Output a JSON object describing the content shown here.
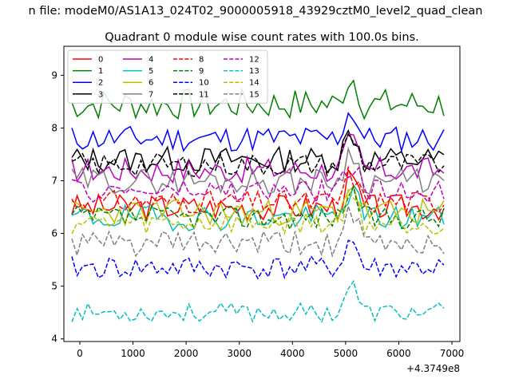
{
  "figure": {
    "suptitle": "n file: modeM0/AS1A13_024T02_9000005918_43929cztM0_level2_quad_clean"
  },
  "chart_data": {
    "type": "line",
    "title": "Quadrant 0 module wise count rates with 100.0s bins.",
    "xlabel": "",
    "ylabel": "",
    "x_offset_label": "+4.3749e8",
    "xlim": [
      -300,
      7150
    ],
    "ylim": [
      3.95,
      9.55
    ],
    "xticks": [
      0,
      1000,
      2000,
      3000,
      4000,
      5000,
      6000,
      7000
    ],
    "yticks": [
      4,
      5,
      6,
      7,
      8,
      9
    ],
    "grid": false,
    "legend": {
      "position": "top-left",
      "columns": 4
    },
    "x": {
      "start": -150,
      "step": 100,
      "count": 71
    },
    "series": [
      {
        "name": "0",
        "color": "#ff0000",
        "style": "solid",
        "base": 6.5,
        "amp": 0.25,
        "seed": 3
      },
      {
        "name": "1",
        "color": "#008000",
        "style": "solid",
        "base": 8.45,
        "amp": 0.3,
        "seed": 7
      },
      {
        "name": "2",
        "color": "#0000ff",
        "style": "solid",
        "base": 7.8,
        "amp": 0.25,
        "seed": 11
      },
      {
        "name": "3",
        "color": "#000000",
        "style": "solid",
        "base": 7.4,
        "amp": 0.25,
        "seed": 13
      },
      {
        "name": "4",
        "color": "#bf00bf",
        "style": "solid",
        "base": 7.2,
        "amp": 0.25,
        "seed": 17
      },
      {
        "name": "5",
        "color": "#00bfbf",
        "style": "solid",
        "base": 6.3,
        "amp": 0.25,
        "seed": 19
      },
      {
        "name": "6",
        "color": "#bfbf00",
        "style": "solid",
        "base": 6.4,
        "amp": 0.25,
        "seed": 23
      },
      {
        "name": "7",
        "color": "#808080",
        "style": "solid",
        "base": 7.0,
        "amp": 0.25,
        "seed": 29
      },
      {
        "name": "8",
        "color": "#ff0000",
        "style": "dashed",
        "base": 6.6,
        "amp": 0.22,
        "seed": 31
      },
      {
        "name": "9",
        "color": "#008000",
        "style": "dashed",
        "base": 6.3,
        "amp": 0.22,
        "seed": 37
      },
      {
        "name": "10",
        "color": "#0000ff",
        "style": "dashed",
        "base": 5.35,
        "amp": 0.22,
        "seed": 41
      },
      {
        "name": "11",
        "color": "#000000",
        "style": "dashed",
        "base": 7.3,
        "amp": 0.22,
        "seed": 43
      },
      {
        "name": "12",
        "color": "#bf00bf",
        "style": "dashed",
        "base": 6.8,
        "amp": 0.22,
        "seed": 47
      },
      {
        "name": "13",
        "color": "#00bfbf",
        "style": "dashed",
        "base": 4.5,
        "amp": 0.18,
        "seed": 53
      },
      {
        "name": "14",
        "color": "#bfbf00",
        "style": "dashed",
        "base": 6.2,
        "amp": 0.22,
        "seed": 59
      },
      {
        "name": "15",
        "color": "#808080",
        "style": "dashed",
        "base": 5.8,
        "amp": 0.25,
        "seed": 61
      }
    ]
  }
}
